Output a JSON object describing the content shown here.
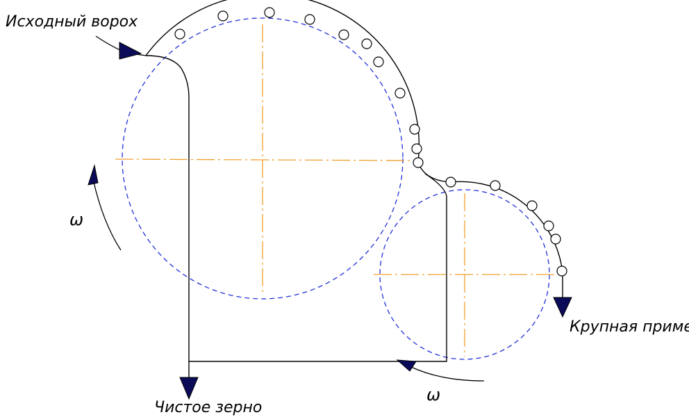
{
  "labels": {
    "input_heap": "Исходный ворох",
    "clean_grain": "Чистое зерно",
    "large_impurity": "Крупная примесь",
    "omega_left": "ω",
    "omega_bottom": "ω"
  },
  "colors": {
    "outline": "#000000",
    "dashed_circle": "#1f2fd6",
    "center_lines": "#f0a030",
    "arrow_fill": "#0b0b5a",
    "arrow_outline": "#000000",
    "background": "#ffffff"
  }
}
